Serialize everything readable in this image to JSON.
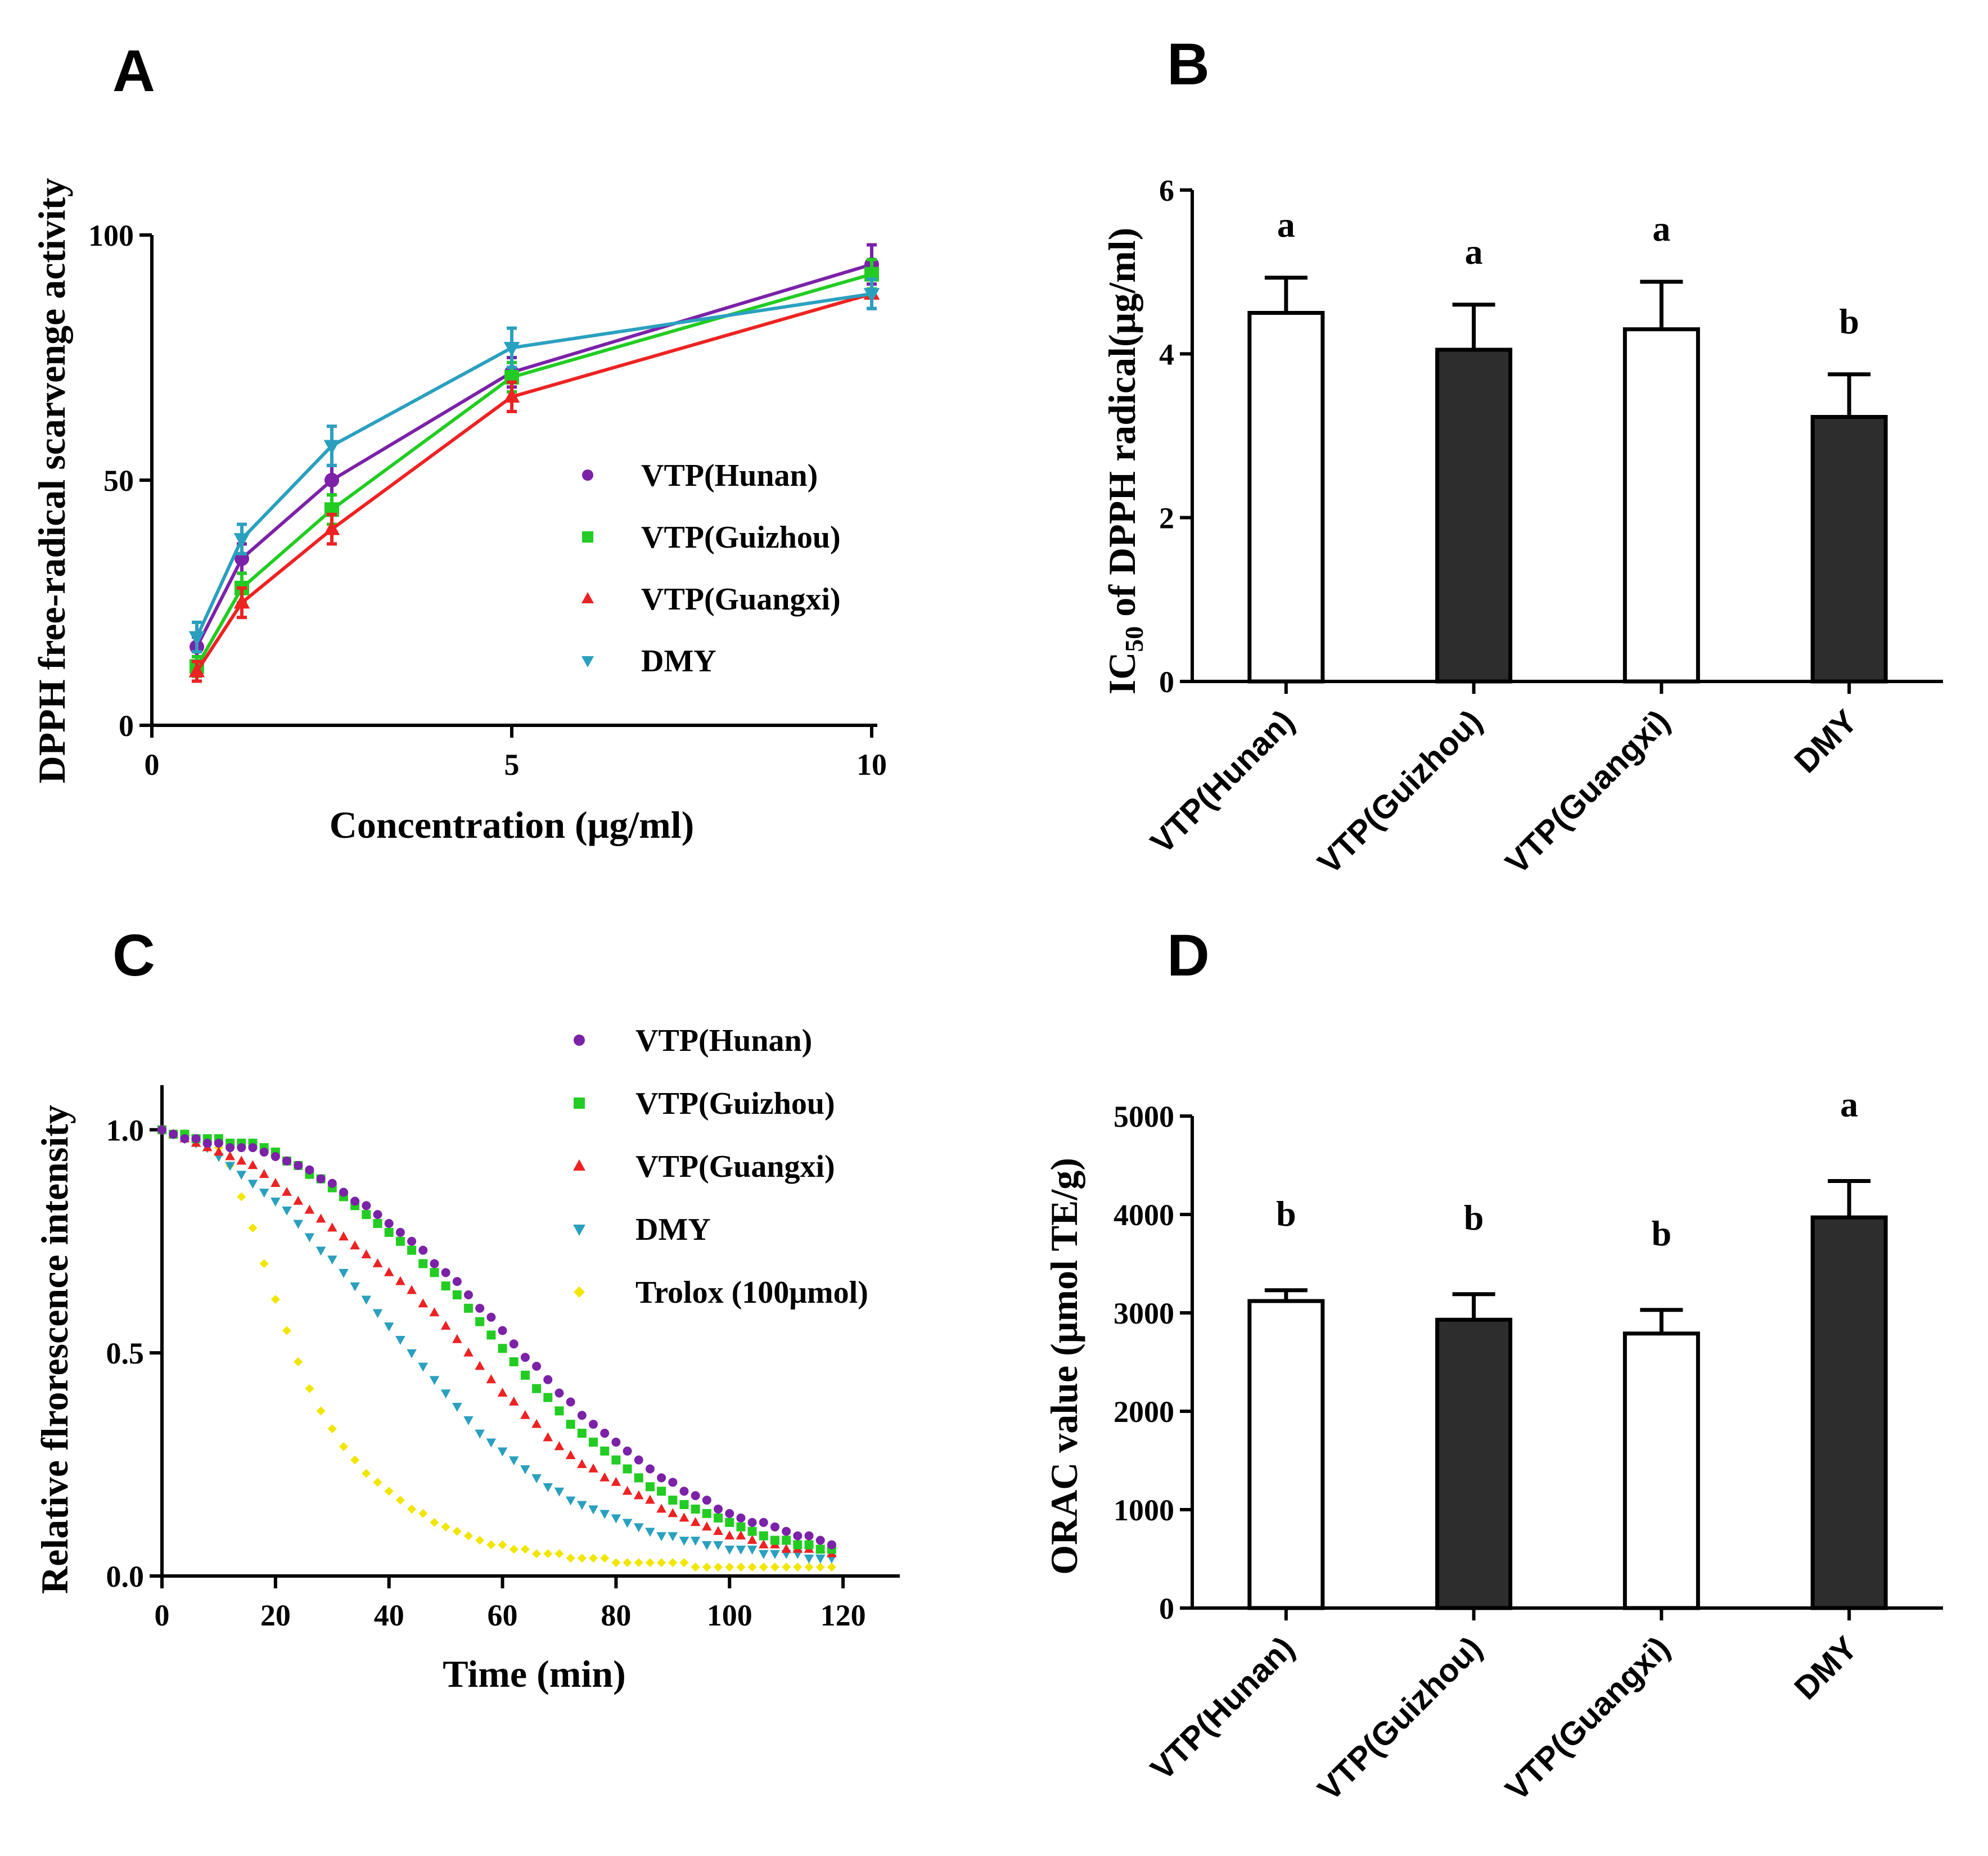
{
  "colors": {
    "hunan": "#7b22a8",
    "guizhou": "#22cc22",
    "guangxi": "#ee2222",
    "dmy": "#2aa0bf",
    "trolox": "#f2e600",
    "bar_white": "#ffffff",
    "bar_dark": "#2d2d2d"
  },
  "chart_data": [
    {
      "id": "A",
      "panel_label": "A",
      "type": "line",
      "xlabel": "Concentration (μg/ml)",
      "ylabel": "DPPH free-radical scarvenge activity",
      "xlim": [
        0,
        10
      ],
      "ylim": [
        0,
        100
      ],
      "xticks": [
        0,
        5,
        10
      ],
      "yticks": [
        0,
        50,
        100
      ],
      "xtick_labels": [
        "0",
        "5",
        "10"
      ],
      "ytick_labels": [
        "0",
        "50",
        "100"
      ],
      "x": [
        0.625,
        1.25,
        2.5,
        5,
        10
      ],
      "series": [
        {
          "name": "VTP(Hunan)",
          "color_key": "hunan",
          "marker": "circle",
          "values": [
            16,
            34,
            50,
            72,
            94
          ],
          "errors": [
            2,
            3,
            3,
            3,
            4
          ]
        },
        {
          "name": "VTP(Guizhou)",
          "color_key": "guizhou",
          "marker": "square",
          "values": [
            12,
            28,
            44,
            71,
            92
          ],
          "errors": [
            2,
            3,
            3,
            3,
            3
          ]
        },
        {
          "name": "VTP(Guangxi)",
          "color_key": "guangxi",
          "marker": "triangle-up",
          "values": [
            11,
            25,
            40,
            67,
            88
          ],
          "errors": [
            2,
            3,
            3,
            3,
            3
          ]
        },
        {
          "name": "DMY",
          "color_key": "dmy",
          "marker": "triangle-down",
          "values": [
            18,
            38,
            57,
            77,
            88
          ],
          "errors": [
            3,
            3,
            4,
            4,
            3
          ]
        }
      ],
      "legend": [
        "VTP(Hunan)",
        "VTP(Guizhou)",
        "VTP(Guangxi)",
        "DMY"
      ]
    },
    {
      "id": "B",
      "panel_label": "B",
      "type": "bar",
      "ylabel_main": "IC",
      "ylabel_sub": "50",
      "ylabel_rest": " of DPPH radical(μg/ml)",
      "ylim": [
        0,
        6
      ],
      "yticks": [
        0,
        2,
        4,
        6
      ],
      "ytick_labels": [
        "0",
        "2",
        "4",
        "6"
      ],
      "categories": [
        "VTP(Hunan)",
        "VTP(Guizhou)",
        "VTP(Guangxi)",
        "DMY"
      ],
      "values": [
        4.5,
        4.05,
        4.3,
        3.23
      ],
      "errors": [
        0.43,
        0.55,
        0.58,
        0.52
      ],
      "fills": [
        "white",
        "dark",
        "white",
        "dark"
      ],
      "significance": [
        "a",
        "a",
        "a",
        "b"
      ]
    },
    {
      "id": "C",
      "panel_label": "C",
      "type": "scatter",
      "xlabel": "Time (min)",
      "ylabel": "Relative flrorescence intensity",
      "xlim": [
        0,
        130
      ],
      "ylim": [
        0,
        1.1
      ],
      "xticks": [
        0,
        20,
        40,
        60,
        80,
        100,
        120
      ],
      "yticks": [
        0,
        0.5,
        1.0
      ],
      "xtick_labels": [
        "0",
        "20",
        "40",
        "60",
        "80",
        "100",
        "120"
      ],
      "ytick_labels": [
        "0.0",
        "0.5",
        "1.0"
      ],
      "x_start": 0,
      "x_step": 2,
      "series": [
        {
          "name": "VTP(Hunan)",
          "color_key": "hunan",
          "marker": "circle",
          "values": [
            1.0,
            0.99,
            0.98,
            0.98,
            0.97,
            0.97,
            0.96,
            0.96,
            0.96,
            0.95,
            0.94,
            0.93,
            0.92,
            0.91,
            0.89,
            0.88,
            0.86,
            0.84,
            0.83,
            0.81,
            0.79,
            0.77,
            0.75,
            0.73,
            0.7,
            0.68,
            0.66,
            0.63,
            0.6,
            0.58,
            0.55,
            0.52,
            0.49,
            0.47,
            0.44,
            0.41,
            0.39,
            0.36,
            0.34,
            0.32,
            0.3,
            0.28,
            0.26,
            0.24,
            0.22,
            0.21,
            0.19,
            0.18,
            0.17,
            0.15,
            0.14,
            0.13,
            0.12,
            0.12,
            0.11,
            0.1,
            0.09,
            0.09,
            0.08,
            0.07
          ]
        },
        {
          "name": "VTP(Guizhou)",
          "color_key": "guizhou",
          "marker": "square",
          "values": [
            1.0,
            0.99,
            0.99,
            0.98,
            0.98,
            0.98,
            0.97,
            0.97,
            0.97,
            0.96,
            0.95,
            0.93,
            0.92,
            0.9,
            0.89,
            0.87,
            0.85,
            0.83,
            0.81,
            0.79,
            0.77,
            0.75,
            0.73,
            0.7,
            0.68,
            0.65,
            0.63,
            0.6,
            0.57,
            0.54,
            0.51,
            0.48,
            0.45,
            0.42,
            0.4,
            0.37,
            0.34,
            0.32,
            0.3,
            0.28,
            0.26,
            0.24,
            0.22,
            0.2,
            0.19,
            0.17,
            0.16,
            0.15,
            0.14,
            0.13,
            0.12,
            0.11,
            0.1,
            0.09,
            0.08,
            0.08,
            0.07,
            0.07,
            0.06,
            0.06
          ]
        },
        {
          "name": "VTP(Guangxi)",
          "color_key": "guangxi",
          "marker": "triangle-up",
          "values": [
            1.0,
            0.99,
            0.98,
            0.97,
            0.96,
            0.95,
            0.94,
            0.93,
            0.92,
            0.9,
            0.88,
            0.86,
            0.84,
            0.82,
            0.8,
            0.78,
            0.76,
            0.74,
            0.72,
            0.7,
            0.68,
            0.66,
            0.64,
            0.61,
            0.59,
            0.56,
            0.53,
            0.5,
            0.47,
            0.44,
            0.41,
            0.39,
            0.36,
            0.34,
            0.31,
            0.29,
            0.27,
            0.25,
            0.24,
            0.22,
            0.21,
            0.19,
            0.18,
            0.17,
            0.15,
            0.14,
            0.13,
            0.12,
            0.11,
            0.1,
            0.09,
            0.09,
            0.08,
            0.07,
            0.07,
            0.06,
            0.06,
            0.06,
            0.06,
            0.05
          ]
        },
        {
          "name": "DMY",
          "color_key": "dmy",
          "marker": "triangle-down",
          "values": [
            1.0,
            0.99,
            0.98,
            0.97,
            0.96,
            0.94,
            0.92,
            0.9,
            0.88,
            0.86,
            0.84,
            0.82,
            0.79,
            0.76,
            0.73,
            0.71,
            0.68,
            0.65,
            0.62,
            0.59,
            0.56,
            0.53,
            0.5,
            0.47,
            0.44,
            0.41,
            0.38,
            0.35,
            0.32,
            0.3,
            0.28,
            0.26,
            0.24,
            0.22,
            0.2,
            0.19,
            0.17,
            0.16,
            0.15,
            0.14,
            0.13,
            0.12,
            0.11,
            0.1,
            0.09,
            0.09,
            0.08,
            0.08,
            0.07,
            0.07,
            0.06,
            0.06,
            0.06,
            0.05,
            0.05,
            0.05,
            0.05,
            0.04,
            0.04,
            0.04
          ]
        },
        {
          "name": "Trolox (100μmol)",
          "color_key": "trolox",
          "marker": "diamond",
          "values": [
            1.0,
            0.99,
            0.98,
            0.98,
            0.97,
            0.96,
            0.92,
            0.85,
            0.78,
            0.7,
            0.62,
            0.55,
            0.48,
            0.42,
            0.37,
            0.33,
            0.29,
            0.26,
            0.23,
            0.21,
            0.19,
            0.17,
            0.15,
            0.14,
            0.12,
            0.11,
            0.1,
            0.09,
            0.08,
            0.07,
            0.07,
            0.06,
            0.06,
            0.05,
            0.05,
            0.05,
            0.04,
            0.04,
            0.04,
            0.04,
            0.03,
            0.03,
            0.03,
            0.03,
            0.03,
            0.03,
            0.03,
            0.02,
            0.02,
            0.02,
            0.02,
            0.02,
            0.02,
            0.02,
            0.02,
            0.02,
            0.02,
            0.02,
            0.02,
            0.02
          ]
        }
      ],
      "legend": [
        "VTP(Hunan)",
        "VTP(Guizhou)",
        "VTP(Guangxi)",
        "DMY",
        "Trolox (100μmol)"
      ]
    },
    {
      "id": "D",
      "panel_label": "D",
      "type": "bar",
      "ylabel": "ORAC value (μmol TE/g)",
      "ylim": [
        0,
        5000
      ],
      "yticks": [
        0,
        1000,
        2000,
        3000,
        4000,
        5000
      ],
      "ytick_labels": [
        "0",
        "1000",
        "2000",
        "3000",
        "4000",
        "5000"
      ],
      "categories": [
        "VTP(Hunan)",
        "VTP(Guizhou)",
        "VTP(Guangxi)",
        "DMY"
      ],
      "values": [
        3120,
        2930,
        2790,
        3970
      ],
      "errors": [
        110,
        260,
        240,
        370
      ],
      "fills": [
        "white",
        "dark",
        "white",
        "dark"
      ],
      "significance": [
        "b",
        "b",
        "b",
        "a"
      ]
    }
  ]
}
